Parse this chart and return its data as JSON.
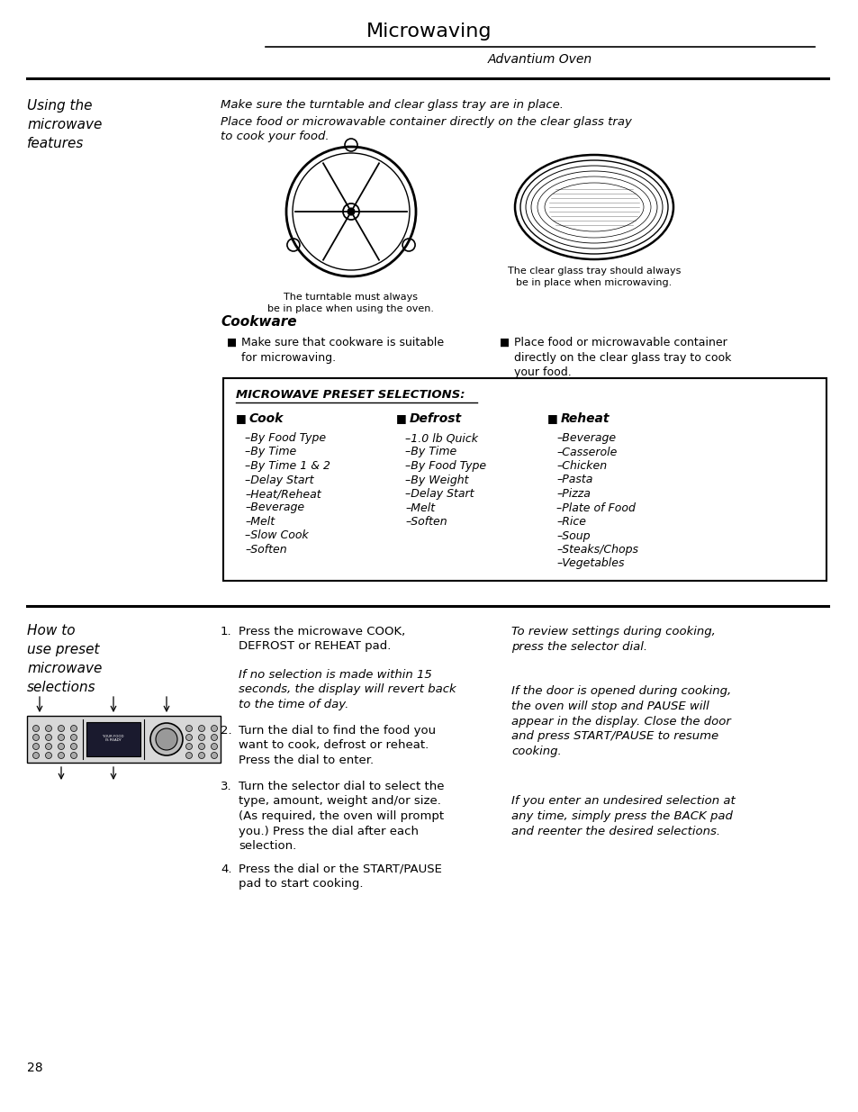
{
  "page_num": "28",
  "header_title": "Microwaving",
  "header_subtitle": "Advantium Oven",
  "section1_title": "Using the\nmicrowave\nfeatures",
  "section1_intro1": "Make sure the turntable and clear glass tray are in place.",
  "section1_intro2": "Place food or microwavable container directly on the clear glass tray\nto cook your food.",
  "cookware_title": "Cookware",
  "cookware_bullet1": "Make sure that cookware is suitable\nfor microwaving.",
  "cookware_bullet2": "Place food or microwavable container\ndirectly on the clear glass tray to cook\nyour food.",
  "preset_box_title": "MICROWAVE PRESET SELECTIONS:",
  "cook_header": "Cook",
  "defrost_header": "Defrost",
  "reheat_header": "Reheat",
  "cook_items": [
    "–By Food Type",
    "–By Time",
    "–By Time 1 & 2",
    "–Delay Start",
    "–Heat/Reheat",
    "–Beverage",
    "–Melt",
    "–Slow Cook",
    "–Soften"
  ],
  "defrost_items": [
    "–1.0 lb Quick",
    "–By Time",
    "–By Food Type",
    "–By Weight",
    "–Delay Start",
    "–Melt",
    "–Soften"
  ],
  "reheat_items": [
    "–Beverage",
    "–Casserole",
    "–Chicken",
    "–Pasta",
    "–Pizza",
    "–Plate of Food",
    "–Rice",
    "–Soup",
    "–Steaks/Chops",
    "–Vegetables"
  ],
  "section2_title": "How to\nuse preset\nmicrowave\nselections",
  "step1_label": "1.",
  "step1": "Press the microwave COOK,\nDEFROST or REHEAT pad.",
  "step1_note": "If no selection is made within 15\nseconds, the display will revert back\nto the time of day.",
  "step2_label": "2.",
  "step2": "Turn the dial to find the food you\nwant to cook, defrost or reheat.\nPress the dial to enter.",
  "step3_label": "3.",
  "step3": "Turn the selector dial to select the\ntype, amount, weight and/or size.\n(As required, the oven will prompt\nyou.) Press the dial after each\nselection.",
  "step4_label": "4.",
  "step4": "Press the dial or the START/PAUSE\npad to start cooking.",
  "right_col1": "To review settings during cooking,\npress the selector dial.",
  "right_col2": "If the door is opened during cooking,\nthe oven will stop and PAUSE will\nappear in the display. Close the door\nand press START/PAUSE to resume\ncooking.",
  "right_col3": "If you enter an undesired selection at\nany time, simply press the BACK pad\nand reenter the desired selections.",
  "bg_color": "#ffffff",
  "text_color": "#000000",
  "line_color": "#000000"
}
